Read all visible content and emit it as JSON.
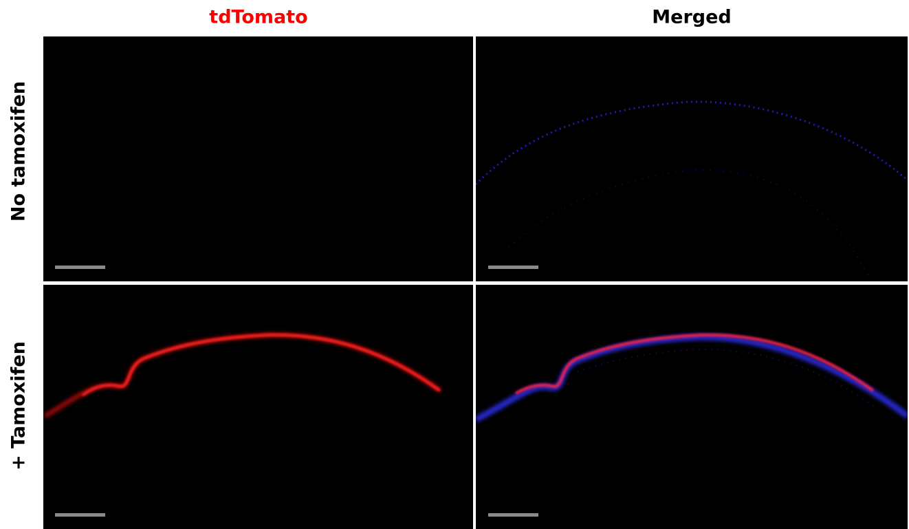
{
  "columns": [
    "tdTomato",
    "Merged"
  ],
  "rows": [
    "No tamoxifen",
    "+ Tamoxifen"
  ]
}
